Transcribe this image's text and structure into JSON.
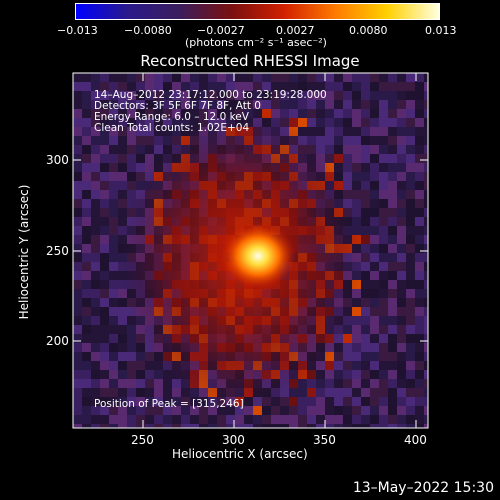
{
  "colorbar": {
    "ticks": [
      "−0.013",
      "−0.0080",
      "−0.0027",
      "0.0027",
      "0.0080",
      "0.013"
    ],
    "unit_label": "(photons cm⁻² s⁻¹ asec⁻²)",
    "colors": [
      "#0000ff",
      "#2a1a8a",
      "#3b1d5c",
      "#7a1010",
      "#d02000",
      "#ff7a00",
      "#ffd000",
      "#ffffe0"
    ]
  },
  "image": {
    "title": "Reconstructed RHESSI Image",
    "info_lines": [
      "14–Aug–2012 23:17:12.000 to 23:19:28.000",
      "Detectors: 3F 5F 6F 7F 8F, Att 0",
      "Energy Range: 6.0 – 12.0 keV",
      "Clean    Total counts: 1.02E+04"
    ],
    "peak_label": "Position of Peak = [315,246]",
    "x_axis": {
      "label": "Heliocentric X (arcsec)",
      "ticks": [
        "250",
        "300",
        "350",
        "400"
      ]
    },
    "y_axis": {
      "label": "Heliocentric Y (arcsec)",
      "ticks": [
        "200",
        "250",
        "300"
      ]
    }
  },
  "timestamp": "13–May–2022 15:30"
}
